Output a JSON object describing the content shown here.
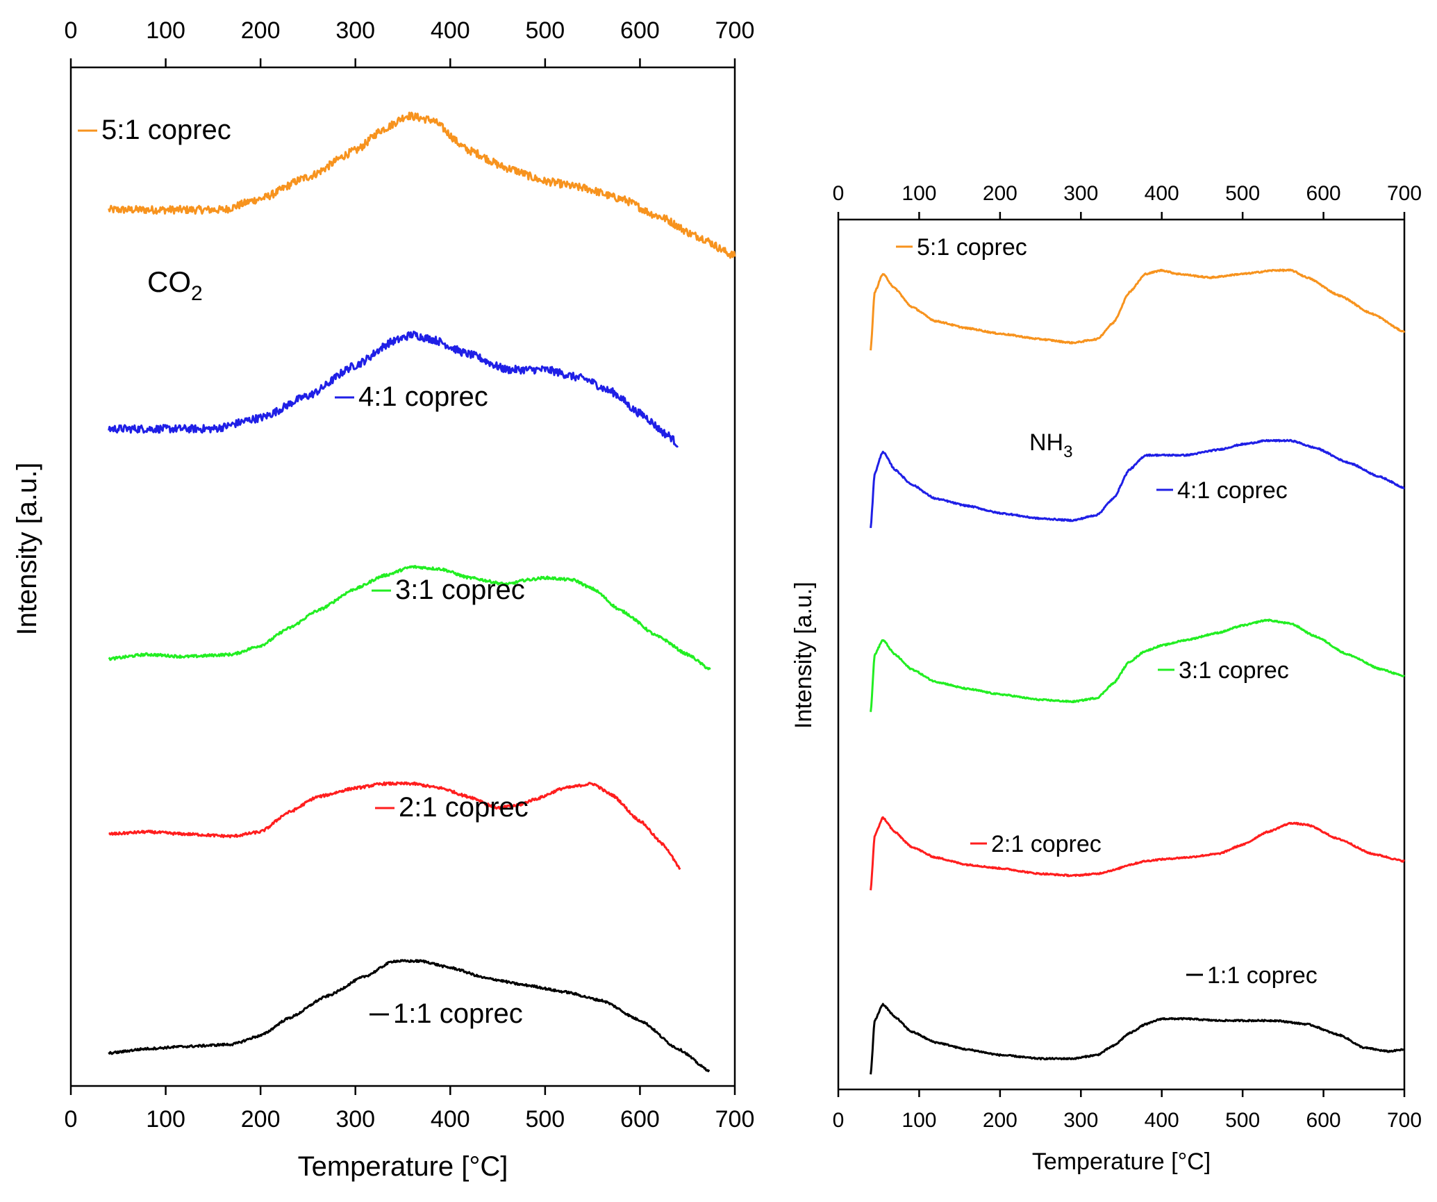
{
  "chart_data": [
    {
      "type": "line",
      "gas": "CO",
      "gas_subscript": "2",
      "xlabel": "Temperature [°C]",
      "ylabel": "Intensity [a.u.]",
      "xlim": [
        0,
        700
      ],
      "ticks": [
        "0",
        "100",
        "200",
        "300",
        "400",
        "500",
        "600",
        "700"
      ],
      "series": [
        {
          "name": "5:1 coprec",
          "color": "#f7931e",
          "x": [
            40,
            100,
            160,
            200,
            250,
            300,
            330,
            355,
            380,
            420,
            460,
            500,
            540,
            580,
            620,
            660,
            700
          ],
          "y": [
            4.45,
            4.45,
            4.45,
            4.5,
            4.6,
            4.72,
            4.82,
            4.88,
            4.86,
            4.72,
            4.64,
            4.58,
            4.55,
            4.5,
            4.42,
            4.33,
            4.24
          ]
        },
        {
          "name": "4:1 coprec",
          "color": "#1f1fe6",
          "x": [
            40,
            100,
            150,
            200,
            250,
            300,
            340,
            360,
            380,
            420,
            460,
            500,
            540,
            570,
            600,
            630,
            640
          ],
          "y": [
            3.45,
            3.45,
            3.45,
            3.5,
            3.6,
            3.74,
            3.85,
            3.88,
            3.86,
            3.79,
            3.72,
            3.72,
            3.68,
            3.62,
            3.52,
            3.42,
            3.38
          ]
        },
        {
          "name": "3:1 coprec",
          "color": "#22ee22",
          "x": [
            40,
            80,
            120,
            170,
            200,
            230,
            260,
            300,
            330,
            360,
            390,
            420,
            460,
            480,
            500,
            530,
            550,
            580,
            620,
            650,
            675
          ],
          "y": [
            2.4,
            2.42,
            2.41,
            2.42,
            2.46,
            2.54,
            2.62,
            2.72,
            2.78,
            2.82,
            2.81,
            2.77,
            2.74,
            2.76,
            2.77,
            2.76,
            2.72,
            2.62,
            2.5,
            2.42,
            2.35
          ]
        },
        {
          "name": "2:1 coprec",
          "color": "#ff1e1e",
          "x": [
            40,
            80,
            120,
            170,
            200,
            230,
            260,
            300,
            330,
            360,
            390,
            420,
            450,
            470,
            490,
            520,
            550,
            570,
            600,
            625,
            643
          ],
          "y": [
            1.6,
            1.61,
            1.6,
            1.59,
            1.61,
            1.7,
            1.77,
            1.81,
            1.83,
            1.83,
            1.81,
            1.77,
            1.72,
            1.73,
            1.76,
            1.81,
            1.83,
            1.78,
            1.66,
            1.55,
            1.44
          ]
        },
        {
          "name": "1:1 coprec",
          "color": "#000000",
          "x": [
            40,
            80,
            120,
            170,
            200,
            230,
            270,
            310,
            340,
            370,
            400,
            440,
            480,
            520,
            560,
            600,
            640,
            673
          ],
          "y": [
            0.6,
            0.62,
            0.63,
            0.64,
            0.68,
            0.76,
            0.86,
            0.95,
            1.02,
            1.02,
            0.99,
            0.94,
            0.91,
            0.88,
            0.84,
            0.75,
            0.62,
            0.52
          ]
        }
      ]
    },
    {
      "type": "line",
      "gas": "NH",
      "gas_subscript": "3",
      "xlabel": "Temperature [°C]",
      "ylabel": "Intensity [a.u.]",
      "xlim": [
        0,
        700
      ],
      "ticks": [
        "0",
        "100",
        "200",
        "300",
        "400",
        "500",
        "600",
        "700"
      ],
      "series": [
        {
          "name": "5:1 coprec",
          "color": "#f7931e",
          "x": [
            40,
            45,
            55,
            70,
            90,
            120,
            160,
            200,
            250,
            290,
            320,
            340,
            360,
            380,
            400,
            420,
            460,
            500,
            540,
            560,
            580,
            620,
            660,
            700
          ],
          "y": [
            4.18,
            4.5,
            4.6,
            4.52,
            4.42,
            4.34,
            4.3,
            4.27,
            4.24,
            4.22,
            4.24,
            4.33,
            4.5,
            4.6,
            4.62,
            4.6,
            4.58,
            4.6,
            4.62,
            4.62,
            4.58,
            4.48,
            4.38,
            4.28
          ]
        },
        {
          "name": "4:1 coprec",
          "color": "#1f1fe6",
          "x": [
            40,
            45,
            55,
            70,
            90,
            120,
            160,
            200,
            250,
            290,
            320,
            340,
            360,
            380,
            400,
            430,
            470,
            500,
            530,
            560,
            590,
            630,
            670,
            700
          ],
          "y": [
            3.2,
            3.5,
            3.62,
            3.52,
            3.44,
            3.36,
            3.32,
            3.28,
            3.25,
            3.24,
            3.27,
            3.36,
            3.52,
            3.6,
            3.6,
            3.6,
            3.63,
            3.66,
            3.68,
            3.68,
            3.64,
            3.56,
            3.48,
            3.42
          ]
        },
        {
          "name": "3:1 coprec",
          "color": "#22ee22",
          "x": [
            40,
            45,
            55,
            70,
            90,
            120,
            160,
            200,
            250,
            290,
            320,
            340,
            360,
            380,
            400,
            430,
            470,
            500,
            530,
            560,
            590,
            630,
            670,
            700
          ],
          "y": [
            2.18,
            2.5,
            2.58,
            2.5,
            2.42,
            2.35,
            2.31,
            2.28,
            2.25,
            2.24,
            2.26,
            2.34,
            2.46,
            2.52,
            2.55,
            2.58,
            2.62,
            2.66,
            2.69,
            2.67,
            2.6,
            2.5,
            2.42,
            2.38
          ]
        },
        {
          "name": "2:1 coprec",
          "color": "#ff1e1e",
          "x": [
            40,
            45,
            55,
            70,
            90,
            120,
            160,
            200,
            250,
            290,
            320,
            340,
            360,
            380,
            400,
            430,
            470,
            500,
            530,
            560,
            580,
            620,
            660,
            700
          ],
          "y": [
            1.2,
            1.5,
            1.6,
            1.52,
            1.44,
            1.38,
            1.34,
            1.32,
            1.29,
            1.28,
            1.29,
            1.31,
            1.34,
            1.36,
            1.37,
            1.38,
            1.4,
            1.45,
            1.52,
            1.57,
            1.56,
            1.48,
            1.4,
            1.36
          ]
        },
        {
          "name": "1:1 coprec",
          "color": "#000000",
          "x": [
            40,
            45,
            55,
            70,
            90,
            120,
            160,
            200,
            250,
            290,
            320,
            340,
            360,
            380,
            400,
            430,
            470,
            500,
            540,
            580,
            620,
            650,
            680,
            700
          ],
          "y": [
            0.18,
            0.48,
            0.57,
            0.5,
            0.42,
            0.36,
            0.32,
            0.29,
            0.27,
            0.27,
            0.29,
            0.34,
            0.41,
            0.46,
            0.49,
            0.49,
            0.48,
            0.48,
            0.48,
            0.46,
            0.4,
            0.33,
            0.31,
            0.32
          ]
        }
      ]
    }
  ]
}
